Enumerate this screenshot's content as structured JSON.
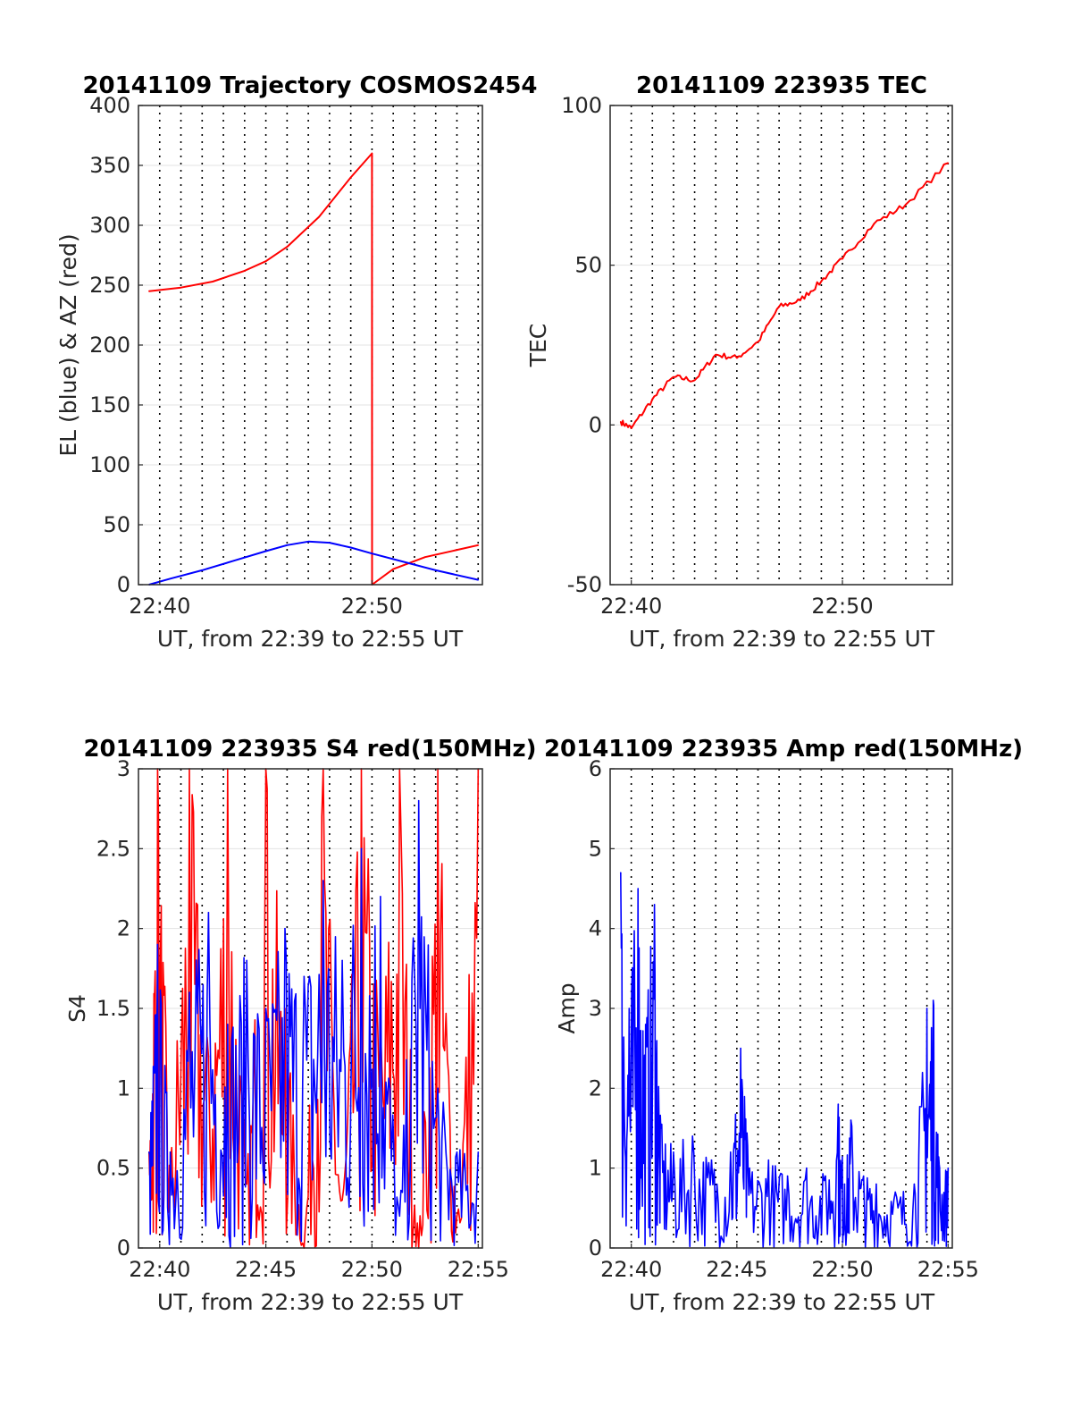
{
  "chart_data": [
    {
      "type": "line",
      "title": "20141109 Trajectory COSMOS2454",
      "xlabel": "UT, from 22:39 to 22:55 UT",
      "ylabel": "EL (blue) & AZ (red)",
      "xlim": [
        22.65,
        22.92
      ],
      "xticks": [
        {
          "v": 22.6667,
          "label": "22:40"
        },
        {
          "v": 22.8333,
          "label": "22:50"
        }
      ],
      "ylim": [
        0,
        400
      ],
      "yticks": [
        0,
        50,
        100,
        150,
        200,
        250,
        300,
        350,
        400
      ],
      "grid": true,
      "series": [
        {
          "color": "#ff0000",
          "x": [
            22.6583,
            22.6833,
            22.7083,
            22.7333,
            22.75,
            22.7667,
            22.7917,
            22.8167,
            22.8333,
            22.8334,
            22.85,
            22.875,
            22.9167
          ],
          "y": [
            245,
            248,
            253,
            262,
            270,
            282,
            307,
            340,
            360,
            0,
            13,
            23,
            33
          ]
        },
        {
          "color": "#0000ff",
          "x": [
            22.6583,
            22.675,
            22.7,
            22.725,
            22.75,
            22.7667,
            22.7833,
            22.8,
            22.8167,
            22.8333,
            22.8583,
            22.8833,
            22.9167
          ],
          "y": [
            0,
            5,
            12,
            20,
            28,
            33,
            36,
            35,
            31,
            26,
            19,
            12,
            4
          ]
        }
      ]
    },
    {
      "type": "line",
      "title": "20141109 223935 TEC",
      "xlabel": "UT, from 22:39 to 22:55 UT",
      "ylabel": "TEC",
      "xlim": [
        22.65,
        22.92
      ],
      "xticks": [
        {
          "v": 22.6667,
          "label": "22:40"
        },
        {
          "v": 22.8333,
          "label": "22:50"
        }
      ],
      "ylim": [
        -50,
        100
      ],
      "yticks": [
        -50,
        0,
        50,
        100
      ],
      "grid": true,
      "series": [
        {
          "color": "#ff0000",
          "x": [
            22.6583,
            22.6667,
            22.6833,
            22.7,
            22.7167,
            22.7333,
            22.75,
            22.7667,
            22.7833,
            22.8,
            22.8167,
            22.8333,
            22.8583,
            22.8833,
            22.9167
          ],
          "y": [
            1,
            -1,
            8,
            15,
            14,
            22,
            21,
            26,
            37,
            39,
            45,
            52,
            63,
            69,
            82
          ]
        }
      ]
    },
    {
      "type": "line",
      "title": "20141109 223935 S4 red(150MHz)",
      "xlabel": "UT, from 22:39 to 22:55 UT",
      "ylabel": "S4",
      "xlim": [
        22.65,
        22.92
      ],
      "xticks": [
        {
          "v": 22.6667,
          "label": "22:40"
        },
        {
          "v": 22.75,
          "label": "22:45"
        },
        {
          "v": 22.8333,
          "label": "22:50"
        },
        {
          "v": 22.9167,
          "label": "22:55"
        }
      ],
      "ylim": [
        0,
        3
      ],
      "yticks": [
        0,
        0.5,
        1,
        1.5,
        2,
        2.5,
        3
      ],
      "grid": true,
      "series": [
        {
          "color": "#ff0000",
          "x": [
            22.6583,
            22.665,
            22.675,
            22.69,
            22.705,
            22.72,
            22.735,
            22.75,
            22.765,
            22.78,
            22.795,
            22.81,
            22.825,
            22.84,
            22.855,
            22.87,
            22.885,
            22.9,
            22.9167
          ],
          "y": [
            0.6,
            3,
            0.5,
            3,
            1.2,
            3,
            0.4,
            3,
            1.5,
            0,
            3,
            0.3,
            3,
            1.4,
            3,
            0,
            3,
            0.2,
            3
          ]
        },
        {
          "color": "#0000ff",
          "x": [
            22.6583,
            22.665,
            22.675,
            22.69,
            22.705,
            22.72,
            22.735,
            22.75,
            22.765,
            22.78,
            22.795,
            22.81,
            22.825,
            22.84,
            22.855,
            22.87,
            22.885,
            22.9,
            22.9167
          ],
          "y": [
            0.6,
            1.9,
            0.6,
            1.6,
            2.1,
            1.4,
            1.8,
            1.5,
            2.0,
            1.7,
            2.3,
            1.8,
            2.5,
            2.2,
            0.2,
            2.8,
            1.0,
            0.6,
            0.6
          ]
        }
      ]
    },
    {
      "type": "line",
      "title": "20141109 223935 Amp red(150MHz)",
      "xlabel": "UT, from 22:39 to 22:55 UT",
      "ylabel": "Amp",
      "xlim": [
        22.65,
        22.92
      ],
      "xticks": [
        {
          "v": 22.6667,
          "label": "22:40"
        },
        {
          "v": 22.75,
          "label": "22:45"
        },
        {
          "v": 22.8333,
          "label": "22:50"
        },
        {
          "v": 22.9167,
          "label": "22:55"
        }
      ],
      "ylim": [
        0,
        6
      ],
      "yticks": [
        0,
        1,
        2,
        3,
        4,
        5,
        6
      ],
      "grid": true,
      "series": [
        {
          "color": "#0000ff",
          "x": [
            22.6583,
            22.665,
            22.672,
            22.678,
            22.685,
            22.69,
            22.7,
            22.715,
            22.73,
            22.745,
            22.753,
            22.76,
            22.775,
            22.79,
            22.805,
            22.82,
            22.83,
            22.835,
            22.84,
            22.85,
            22.86,
            22.875,
            22.89,
            22.9,
            22.905,
            22.91,
            22.9167
          ],
          "y": [
            4.7,
            3.0,
            4.5,
            2.8,
            4.3,
            1.5,
            1.2,
            1.4,
            1.1,
            1.2,
            2.5,
            1.0,
            1.1,
            0.9,
            1.0,
            0.9,
            1.8,
            0.8,
            1.6,
            0.9,
            0.8,
            0.7,
            0.8,
            3.0,
            3.1,
            1.0,
            1.0
          ]
        }
      ]
    }
  ]
}
